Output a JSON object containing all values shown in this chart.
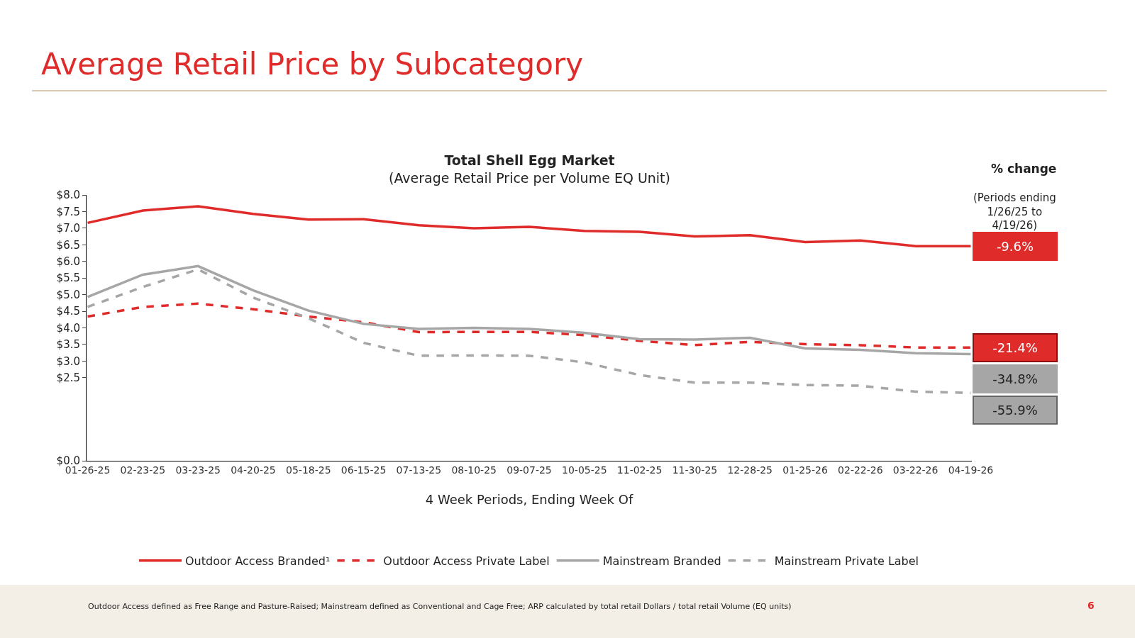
{
  "chart_data": {
    "type": "line",
    "title": "Average Retail Price by Subcategory",
    "subtitle": "Total Shell Egg Market\n(Average Retail Price per Volume EQ Unit)",
    "xlabel": "4 Week Periods, Ending Week Of",
    "categories": [
      "01-26-25",
      "02-23-25",
      "03-23-25",
      "04-20-25",
      "05-18-25",
      "06-15-25",
      "07-13-25",
      "08-10-25",
      "09-07-25",
      "10-05-25",
      "11-02-25",
      "11-30-25",
      "12-28-25",
      "01-25-26",
      "02-22-26",
      "03-22-26",
      "04-19-26"
    ],
    "series": [
      {
        "name": "Outdoor Access Branded¹",
        "color": "#e02b2b",
        "line_style": "solid",
        "values": [
          7.16,
          7.53,
          7.66,
          7.43,
          7.26,
          7.27,
          7.09,
          7.0,
          7.04,
          6.92,
          6.89,
          6.75,
          6.79,
          6.58,
          6.63,
          6.46,
          6.46
        ]
      },
      {
        "name": "Outdoor Access Private Label",
        "color": "#e02b2b",
        "line_style": "dashed",
        "values": [
          4.34,
          4.63,
          4.73,
          4.56,
          4.34,
          4.17,
          3.87,
          3.88,
          3.88,
          3.78,
          3.61,
          3.48,
          3.58,
          3.51,
          3.48,
          3.41,
          3.41
        ]
      },
      {
        "name": "Mainstream Branded",
        "color": "#a6a6a6",
        "line_style": "solid",
        "values": [
          4.93,
          5.6,
          5.86,
          5.13,
          4.52,
          4.12,
          3.97,
          4.0,
          3.97,
          3.85,
          3.66,
          3.65,
          3.7,
          3.38,
          3.34,
          3.24,
          3.21
        ]
      },
      {
        "name": "Mainstream Private Label",
        "color": "#a6a6a6",
        "line_style": "dashed",
        "values": [
          4.63,
          5.23,
          5.76,
          4.91,
          4.29,
          3.55,
          3.16,
          3.17,
          3.16,
          2.96,
          2.58,
          2.35,
          2.35,
          2.28,
          2.26,
          2.08,
          2.04
        ]
      }
    ],
    "ylim": [
      0,
      8.0
    ],
    "yticks": [
      {
        "value": 0,
        "label": "$0.0"
      },
      {
        "value": 2.5,
        "label": "$2.5"
      },
      {
        "value": 3.0,
        "label": "$3.0"
      },
      {
        "value": 3.5,
        "label": "$3.5"
      },
      {
        "value": 4.0,
        "label": "$4.0"
      },
      {
        "value": 4.5,
        "label": "$4.5"
      },
      {
        "value": 5.0,
        "label": "$5.0"
      },
      {
        "value": 5.5,
        "label": "$5.5"
      },
      {
        "value": 6.0,
        "label": "$6.0"
      },
      {
        "value": 6.5,
        "label": "$6.5"
      },
      {
        "value": 7.0,
        "label": "$7.0"
      },
      {
        "value": 7.5,
        "label": "$7.5"
      },
      {
        "value": 8.0,
        "label": "$8.0"
      }
    ],
    "grid": false,
    "legend": "bottom",
    "marker": "none",
    "annotations": [
      "% change",
      "(Periods ending 1/26/25 to 4/19/26)",
      "-9.6%",
      "-21.4%",
      "-34.8%",
      "-55.9%",
      "Outdoor Access defined as Free Range and Pasture-Raised; Mainstream defined as Conventional and Cage Free; ARP calculated by total retail Dollars / total retail Volume (EQ units)",
      "6"
    ]
  }
}
